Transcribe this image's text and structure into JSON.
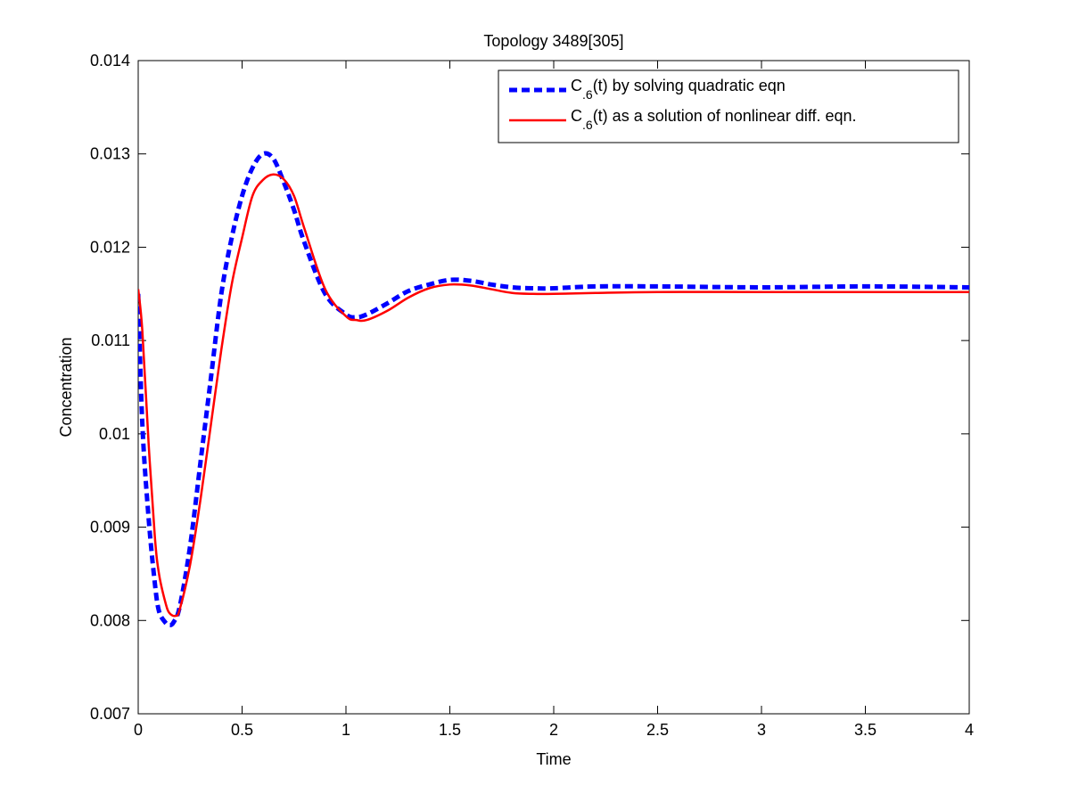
{
  "chart_data": {
    "type": "line",
    "title": "Topology 3489[305]",
    "xlabel": "Time",
    "ylabel": "Concentration",
    "xlim": [
      0,
      4
    ],
    "ylim": [
      0.007,
      0.014
    ],
    "xticks": [
      0,
      0.5,
      1,
      1.5,
      2,
      2.5,
      3,
      3.5,
      4
    ],
    "yticks": [
      0.007,
      0.008,
      0.009,
      0.01,
      0.011,
      0.012,
      0.013,
      0.014
    ],
    "xtick_labels": [
      "0",
      "0.5",
      "1",
      "1.5",
      "2",
      "2.5",
      "3",
      "3.5",
      "4"
    ],
    "ytick_labels": [
      "0.007",
      "0.008",
      "0.009",
      "0.01",
      "0.011",
      "0.012",
      "0.013",
      "0.014"
    ],
    "grid": false,
    "legend_position": "top-right",
    "series": [
      {
        "name": "C.6(t) by solving quadratic eqn",
        "name_base": "C",
        "name_sub": ".6",
        "name_rest": "(t) by solving quadratic eqn",
        "color": "#0000ff",
        "style": "dashed",
        "x": [
          0,
          0.02,
          0.05,
          0.08,
          0.1,
          0.13,
          0.15,
          0.17,
          0.2,
          0.25,
          0.3,
          0.35,
          0.4,
          0.45,
          0.5,
          0.55,
          0.6,
          0.65,
          0.7,
          0.75,
          0.8,
          0.9,
          1.0,
          1.05,
          1.1,
          1.2,
          1.3,
          1.4,
          1.5,
          1.6,
          1.7,
          1.8,
          1.9,
          2.0,
          2.2,
          2.5,
          3.0,
          3.5,
          4.0
        ],
        "y": [
          0.0115,
          0.0101,
          0.0091,
          0.0084,
          0.0081,
          0.00798,
          0.00795,
          0.00798,
          0.00815,
          0.0088,
          0.0097,
          0.0106,
          0.0115,
          0.0121,
          0.01255,
          0.01285,
          0.013,
          0.01295,
          0.0127,
          0.0124,
          0.01205,
          0.0115,
          0.01128,
          0.01125,
          0.01128,
          0.0114,
          0.01153,
          0.0116,
          0.01165,
          0.01164,
          0.0116,
          0.01157,
          0.01156,
          0.01156,
          0.01158,
          0.01158,
          0.01157,
          0.01158,
          0.01157
        ]
      },
      {
        "name": "C.6(t) as a solution of nonlinear diff. eqn.",
        "name_base": "C",
        "name_sub": ".6",
        "name_rest": "(t) as a solution of nonlinear diff. eqn.",
        "color": "#ff0000",
        "style": "solid",
        "x": [
          0,
          0.02,
          0.05,
          0.08,
          0.1,
          0.13,
          0.15,
          0.18,
          0.2,
          0.25,
          0.3,
          0.35,
          0.4,
          0.45,
          0.5,
          0.55,
          0.6,
          0.65,
          0.7,
          0.75,
          0.8,
          0.9,
          1.0,
          1.05,
          1.1,
          1.2,
          1.3,
          1.4,
          1.5,
          1.6,
          1.7,
          1.8,
          1.9,
          2.0,
          2.2,
          2.5,
          3.0,
          3.5,
          4.0
        ],
        "y": [
          0.01155,
          0.0111,
          0.0099,
          0.0089,
          0.0085,
          0.0082,
          0.00808,
          0.00805,
          0.00812,
          0.0086,
          0.0093,
          0.0101,
          0.0109,
          0.0116,
          0.0121,
          0.01255,
          0.01272,
          0.01278,
          0.01273,
          0.01255,
          0.0122,
          0.01155,
          0.01126,
          0.01122,
          0.01122,
          0.01132,
          0.01146,
          0.01156,
          0.0116,
          0.01159,
          0.01155,
          0.01151,
          0.0115,
          0.0115,
          0.01151,
          0.01152,
          0.01152,
          0.01152,
          0.01152
        ]
      }
    ]
  }
}
